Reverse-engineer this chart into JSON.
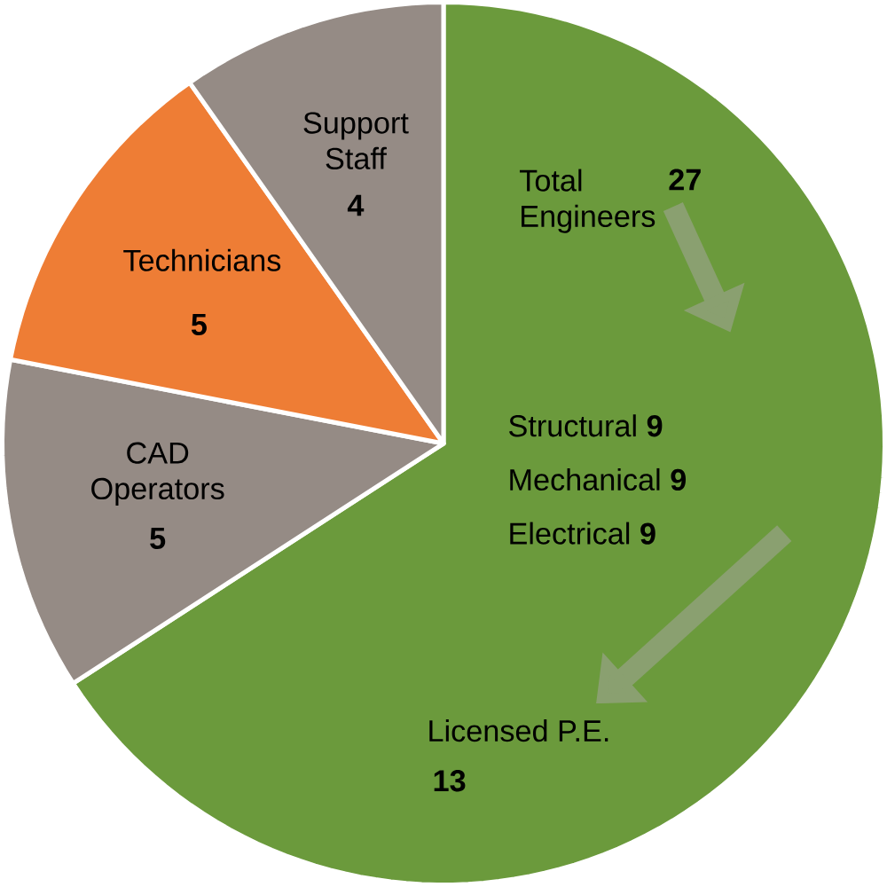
{
  "chart_data": {
    "type": "pie",
    "categories": [
      "Total Engineers",
      "CAD Operators",
      "Technicians",
      "Support Staff"
    ],
    "values": [
      27,
      5,
      5,
      4
    ],
    "colors": [
      "#6b9a3c",
      "#958b85",
      "#ee7d35",
      "#958b85"
    ],
    "data_labels": true,
    "annotations": [
      "Structural **9**",
      "Mechanical **9**",
      "Electrical **9**",
      "Licensed P.E.",
      "**13**"
    ]
  }
}
